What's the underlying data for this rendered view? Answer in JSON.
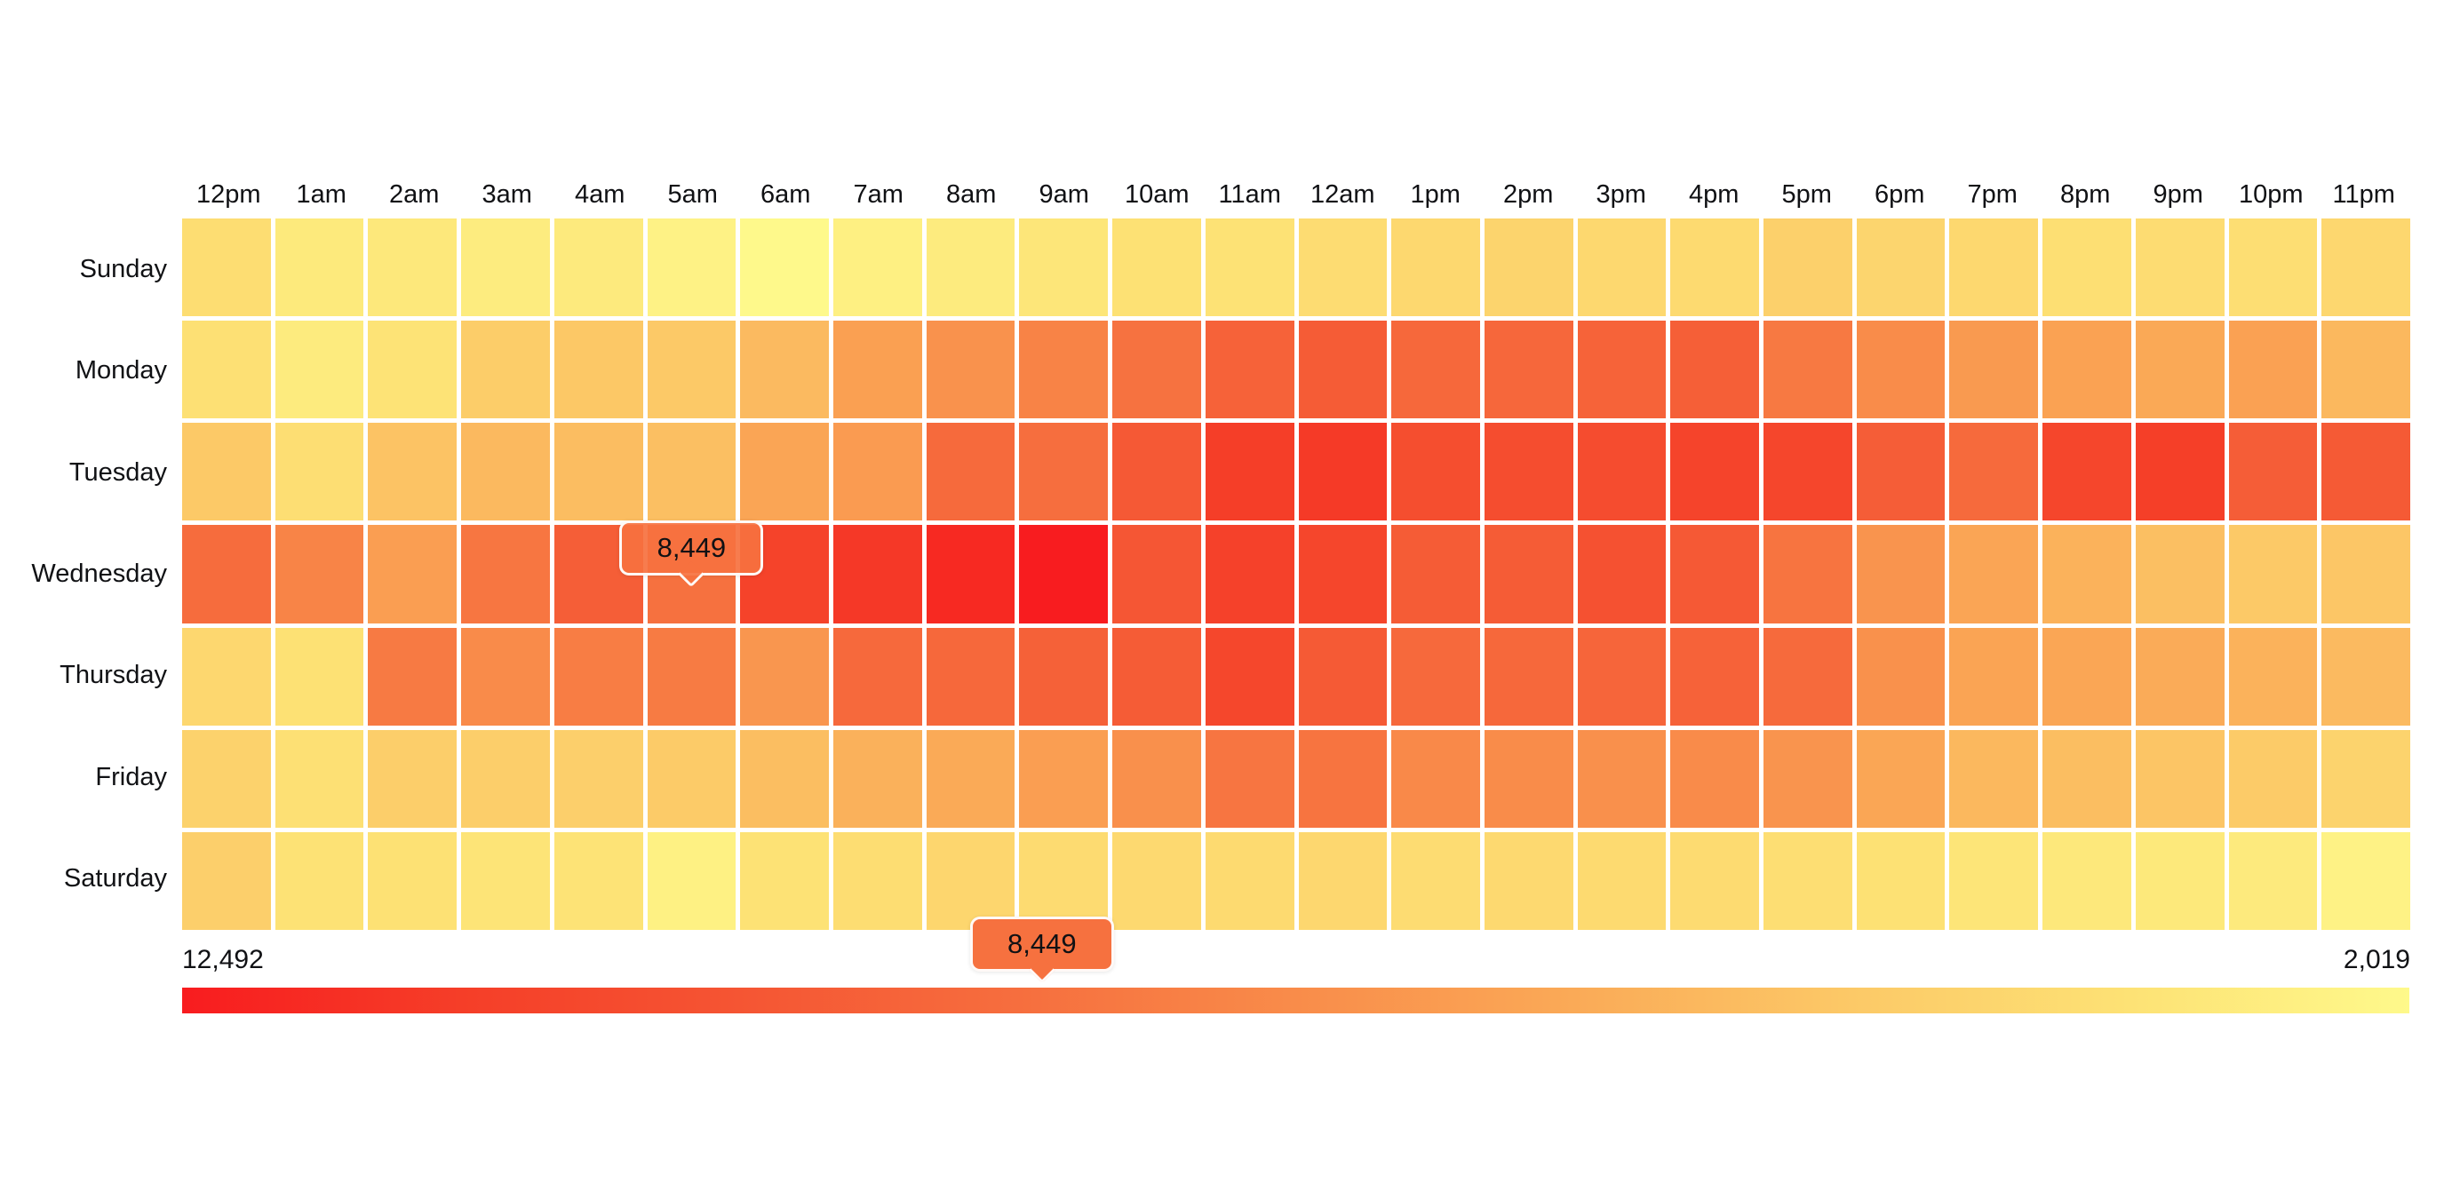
{
  "chart_data": {
    "type": "heatmap",
    "title": "",
    "x_labels": [
      "12pm",
      "1am",
      "2am",
      "3am",
      "4am",
      "5am",
      "6am",
      "7am",
      "8am",
      "9am",
      "10am",
      "11am",
      "12am",
      "1pm",
      "2pm",
      "3pm",
      "4pm",
      "5pm",
      "6pm",
      "7pm",
      "8pm",
      "9pm",
      "10pm",
      "11pm"
    ],
    "y_labels": [
      "Sunday",
      "Monday",
      "Tuesday",
      "Wednesday",
      "Thursday",
      "Friday",
      "Saturday"
    ],
    "value_min": 2019,
    "value_max": 12492,
    "values": [
      [
        3600,
        2900,
        3000,
        2750,
        2850,
        2400,
        2019,
        2550,
        2800,
        3100,
        3400,
        3350,
        3650,
        3850,
        4050,
        3850,
        3750,
        4250,
        4000,
        3850,
        3500,
        3650,
        3550,
        3900
      ],
      [
        3450,
        2800,
        3250,
        4450,
        4700,
        4650,
        5250,
        6400,
        7000,
        7650,
        8400,
        9200,
        9500,
        8900,
        8950,
        9150,
        9350,
        8100,
        7250,
        6650,
        6300,
        6000,
        6350,
        5350
      ],
      [
        4650,
        3550,
        4900,
        5300,
        5150,
        5050,
        6150,
        6600,
        8800,
        8550,
        9650,
        11200,
        11350,
        10300,
        10350,
        10400,
        10850,
        10700,
        9450,
        8800,
        10700,
        11150,
        9450,
        9600
      ],
      [
        8650,
        7600,
        6450,
        8200,
        9400,
        8449,
        10900,
        11400,
        12000,
        12492,
        9800,
        11000,
        10750,
        9500,
        9500,
        10100,
        9650,
        8300,
        6900,
        6150,
        5600,
        5050,
        4650,
        4750
      ],
      [
        3900,
        3400,
        8050,
        7300,
        7900,
        8000,
        6800,
        8850,
        8900,
        9250,
        9500,
        10650,
        9600,
        8850,
        8900,
        9050,
        9200,
        8750,
        7050,
        6200,
        6100,
        5900,
        5600,
        5250
      ],
      [
        4150,
        3450,
        4350,
        4400,
        4300,
        4550,
        5100,
        5650,
        5950,
        6450,
        7100,
        8250,
        8300,
        7400,
        7250,
        7100,
        7300,
        6900,
        6100,
        5350,
        5100,
        4800,
        4550,
        4100
      ],
      [
        4300,
        3300,
        3400,
        3200,
        3250,
        2500,
        3300,
        3600,
        3950,
        3700,
        3800,
        3750,
        3900,
        3650,
        3800,
        3750,
        3700,
        3550,
        3400,
        3150,
        3000,
        2950,
        2850,
        2400
      ]
    ],
    "colormap": [
      {
        "t": 0.0,
        "color": "#f81c1f"
      },
      {
        "t": 0.125,
        "color": "#f53e28"
      },
      {
        "t": 0.25,
        "color": "#f55533"
      },
      {
        "t": 0.375,
        "color": "#f66e3e"
      },
      {
        "t": 0.5,
        "color": "#f98c4a"
      },
      {
        "t": 0.625,
        "color": "#faaa57"
      },
      {
        "t": 0.75,
        "color": "#fcc967"
      },
      {
        "t": 0.875,
        "color": "#fde275"
      },
      {
        "t": 1.0,
        "color": "#fef98b"
      }
    ],
    "legend": {
      "left_label": "12,492",
      "right_label": "2,019",
      "marker_value": 8449,
      "marker_label": "8,449"
    },
    "tooltip": {
      "label": "8,449",
      "value": 8449,
      "row": "Wednesday",
      "col": "5am"
    }
  }
}
